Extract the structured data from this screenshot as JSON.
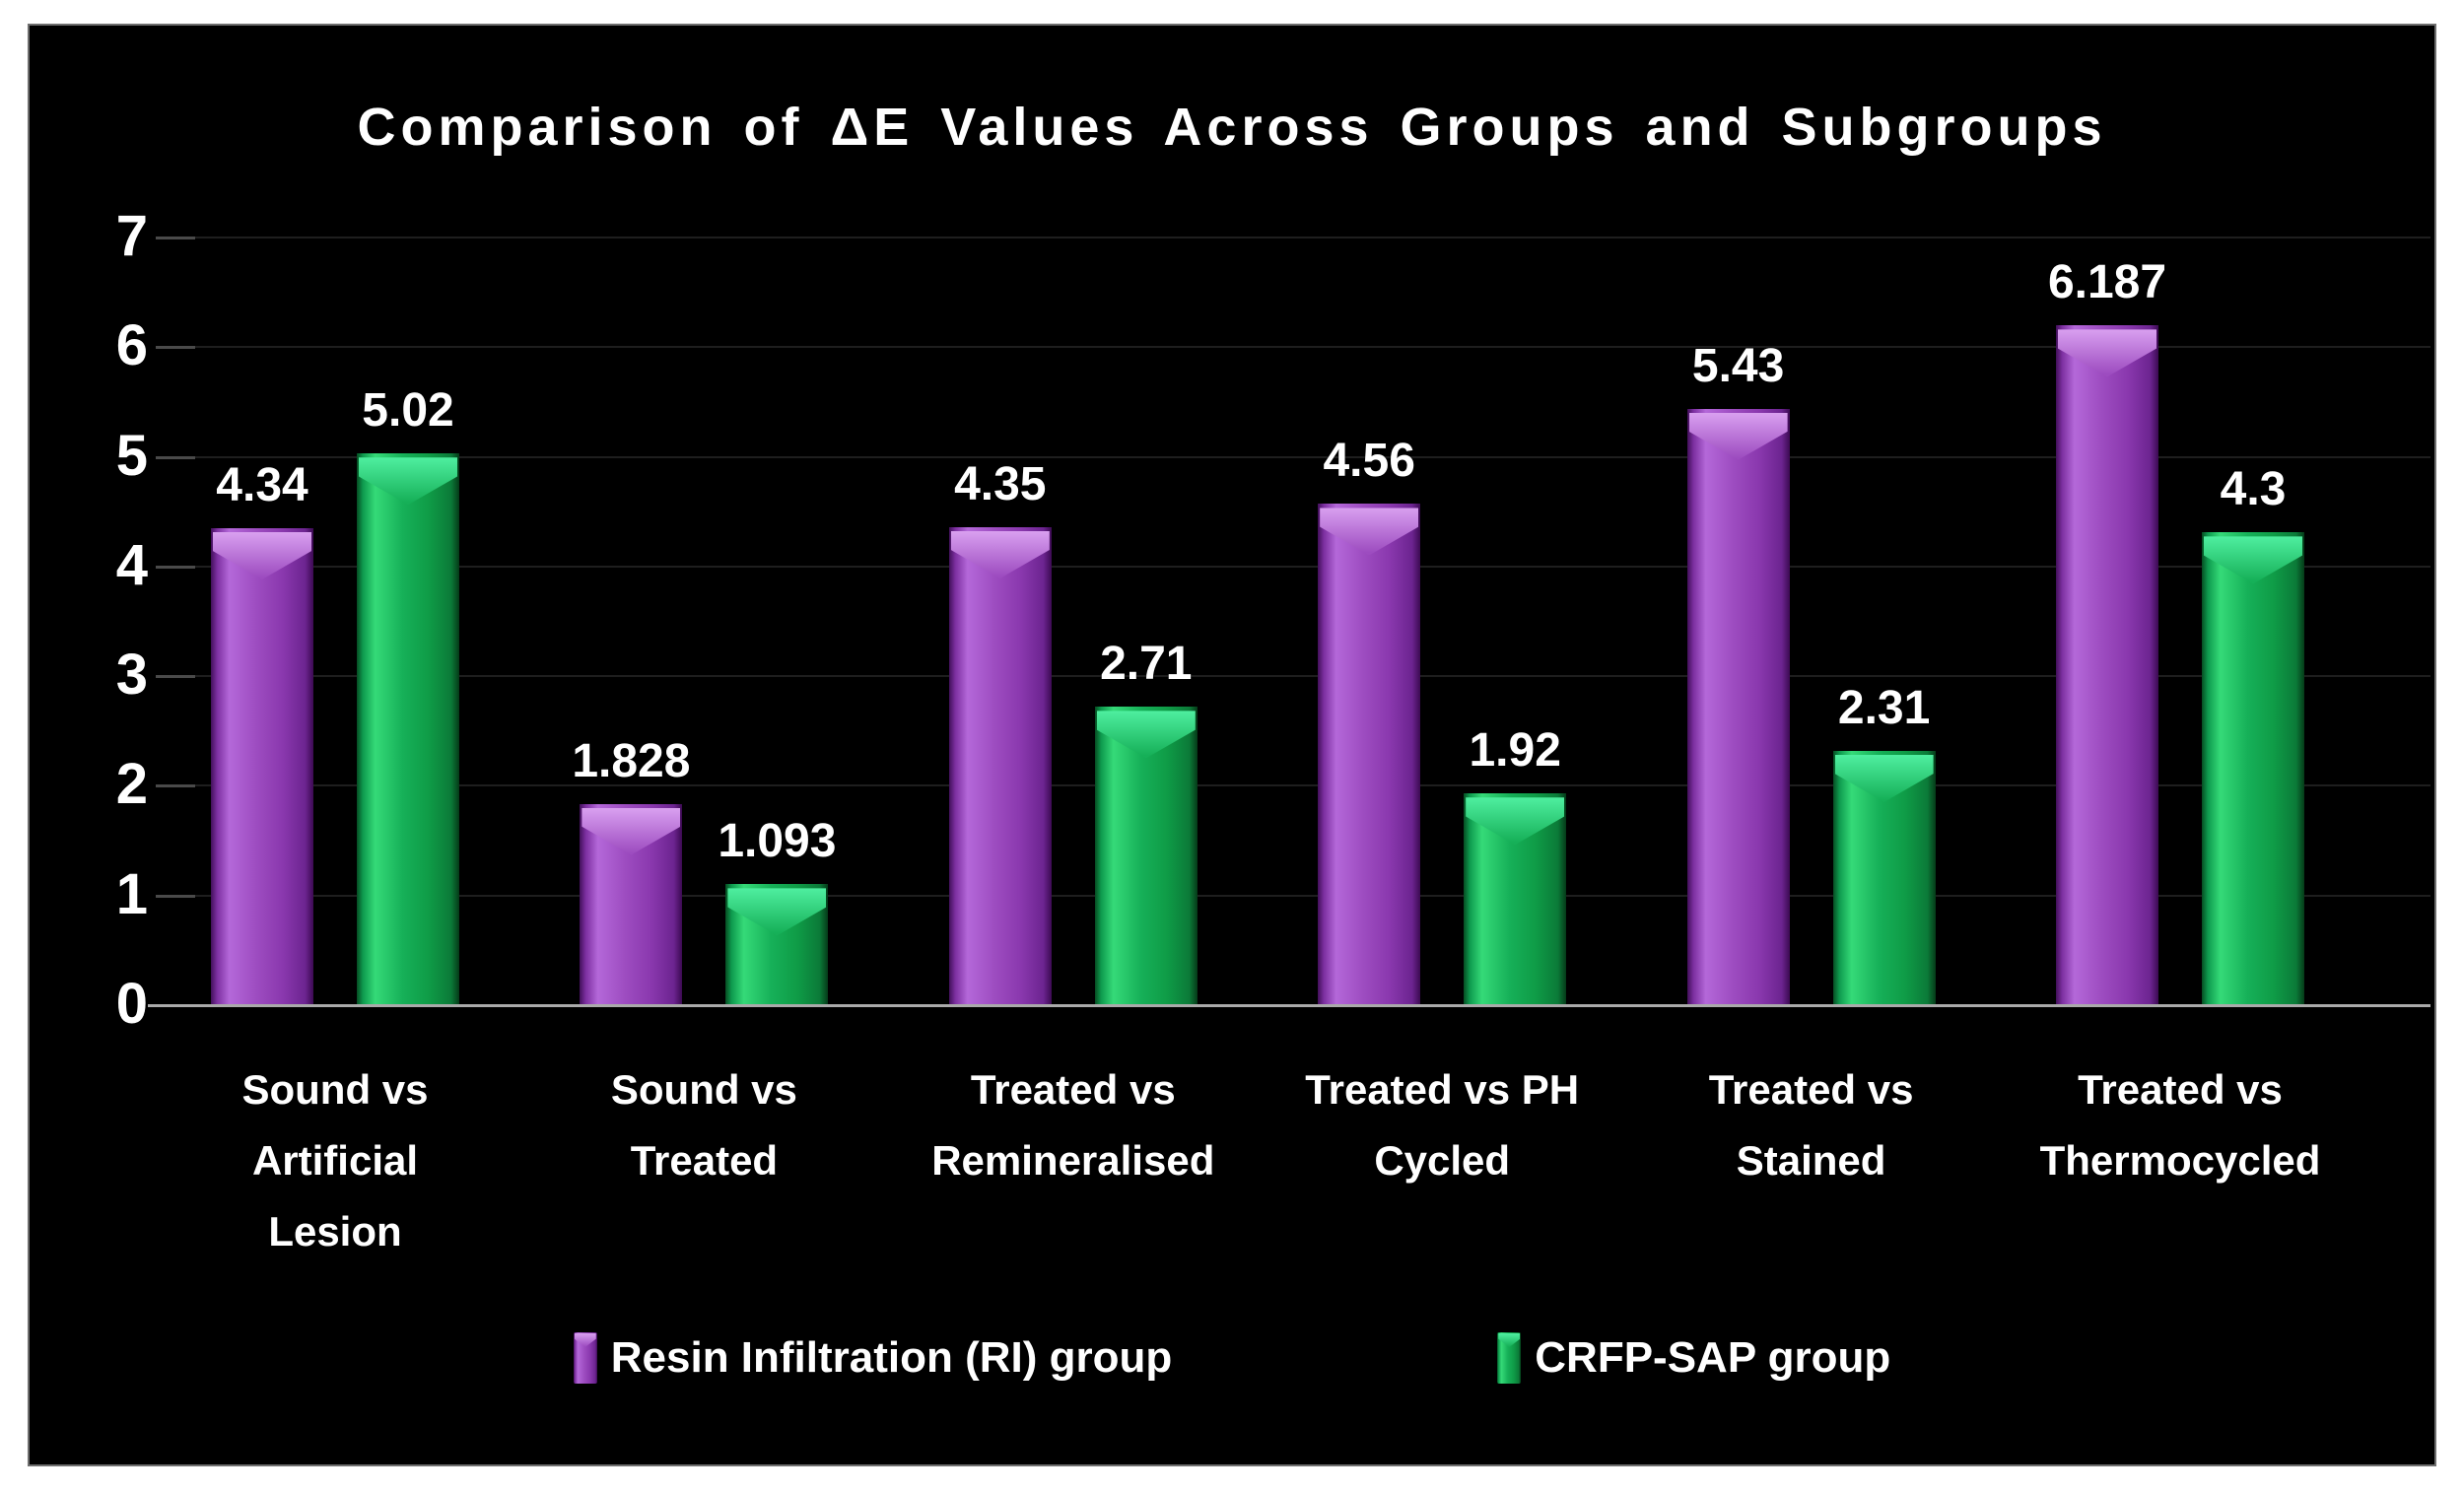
{
  "chart_data": {
    "type": "bar",
    "title": "Comparison of ΔE Values Across Groups and Subgroups",
    "categories": [
      "Sound vs\nArtificial\nLesion",
      "Sound vs\nTreated",
      "Treated vs\nRemineralised",
      "Treated vs PH\nCycled",
      "Treated vs\nStained",
      "Treated vs\nThermocycled"
    ],
    "series": [
      {
        "name": "Resin Infiltration (RI) group",
        "values": [
          4.34,
          1.828,
          4.35,
          4.56,
          5.43,
          6.187
        ],
        "labels": [
          "4.34",
          "1.828",
          "4.35",
          "4.56",
          "5.43",
          "6.187"
        ],
        "color": "#9b44c0",
        "body_gradient": [
          "#42105a",
          "#7c2fa0",
          "#b468d9",
          "#9d4cc0",
          "#8a38ae",
          "#6c2490",
          "#3c0a52"
        ],
        "cap_color": "#d9a0f0"
      },
      {
        "name": "CRFP-SAP group",
        "values": [
          5.02,
          1.093,
          2.71,
          1.92,
          2.31,
          4.3
        ],
        "labels": [
          "5.02",
          "1.093",
          "2.71",
          "1.92",
          "2.31",
          "4.3"
        ],
        "color": "#12a94e",
        "body_gradient": [
          "#064d22",
          "#0e9a4e",
          "#35da78",
          "#16b058",
          "#0f9c47",
          "#0b7a38",
          "#053a18"
        ],
        "cap_color": "#4fefa0"
      }
    ],
    "ylim": [
      0,
      7
    ],
    "yticks": [
      0,
      1,
      2,
      3,
      4,
      5,
      6,
      7
    ],
    "grid": true,
    "legend_position": "bottom",
    "colors": {
      "background": "#ffffff",
      "panel": "#000000",
      "panel_border": "#6e6e6e",
      "text": "#ffffff",
      "gridline": "#1e1e1e",
      "gridline_tick": "#4a4a4a",
      "baseline": "#aaaaaa"
    }
  }
}
